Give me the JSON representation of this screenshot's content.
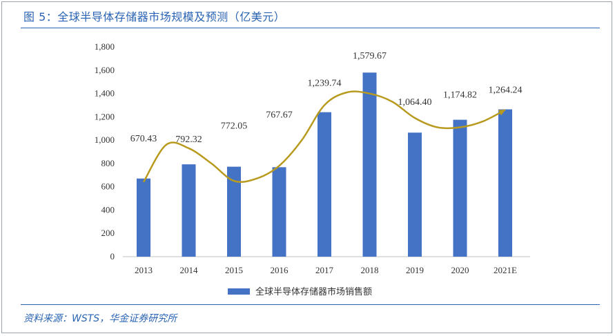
{
  "title": "图 5：全球半导体存储器市场规模及预测（亿美元）",
  "source": "资料来源：WSTS，华金证券研究所",
  "colors": {
    "bar": "#4472c4",
    "curve": "#b89a1e",
    "accent": "#2a63b3"
  },
  "chart_data": {
    "type": "bar",
    "categories": [
      "2013",
      "2014",
      "2015",
      "2016",
      "2017",
      "2018",
      "2019",
      "2020",
      "2021E"
    ],
    "series": [
      {
        "name": "全球半导体存储器市场销售额",
        "values": [
          670.43,
          792.32,
          772.05,
          767.67,
          1239.74,
          1579.67,
          1064.4,
          1174.82,
          1264.24
        ],
        "labels": [
          "670.43",
          "792.32",
          "772.05",
          "767.67",
          "1,239.74",
          "1,579.67",
          "1,064.40",
          "1,174.82",
          "1,264.24"
        ]
      }
    ],
    "y_ticks": [
      "0",
      "200",
      "400",
      "600",
      "800",
      "1,000",
      "1,200",
      "1,400",
      "1,600",
      "1,800"
    ],
    "ylim": [
      0,
      1800
    ],
    "trend_curve": [
      [
        2013,
        640
      ],
      [
        2013.5,
        960
      ],
      [
        2014,
        930
      ],
      [
        2014.5,
        800
      ],
      [
        2015,
        650
      ],
      [
        2015.5,
        670
      ],
      [
        2016,
        780
      ],
      [
        2016.5,
        1000
      ],
      [
        2017,
        1300
      ],
      [
        2017.5,
        1410
      ],
      [
        2018,
        1400
      ],
      [
        2018.5,
        1330
      ],
      [
        2019,
        1190
      ],
      [
        2019.5,
        1110
      ],
      [
        2020,
        1110
      ],
      [
        2020.5,
        1160
      ],
      [
        2021,
        1260
      ]
    ],
    "legend_position": "bottom",
    "grid": false
  }
}
